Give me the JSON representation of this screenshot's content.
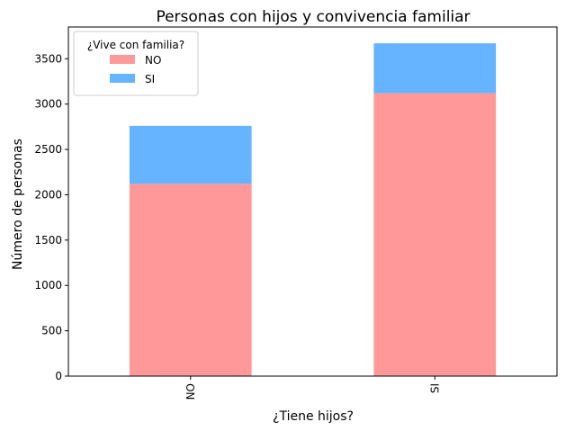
{
  "chart_data": {
    "type": "bar",
    "stacked": true,
    "title": "Personas con hijos y convivencia familiar",
    "xlabel": "¿Tiene hijos?",
    "ylabel": "Número de personas",
    "categories": [
      "NO",
      "SI"
    ],
    "series": [
      {
        "name": "NO",
        "values": [
          2120,
          3120
        ],
        "color": "#ff9999"
      },
      {
        "name": "SI",
        "values": [
          640,
          550
        ],
        "color": "#66b3ff"
      }
    ],
    "ylim": [
      0,
      3850
    ],
    "yticks": [
      0,
      500,
      1000,
      1500,
      2000,
      2500,
      3000,
      3500
    ],
    "grid": false,
    "legend": {
      "title": "¿Vive con familia?",
      "placement": "top-left"
    }
  }
}
